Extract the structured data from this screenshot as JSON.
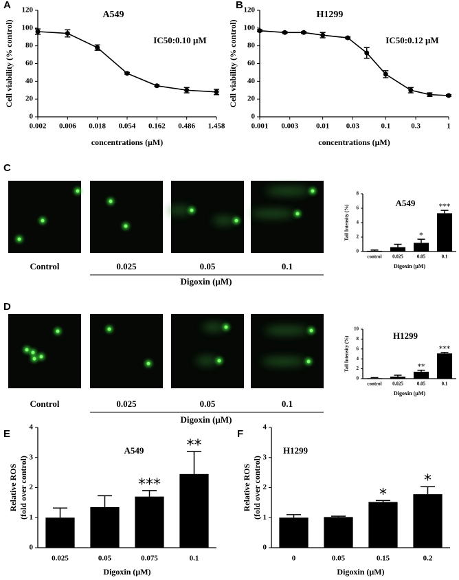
{
  "chart_data": [
    {
      "type": "line",
      "panel_label": "A",
      "title": "A549",
      "annotation": "IC50:0.10 μM",
      "xlabel": "concentrations (μM)",
      "ylabel": "Cell viability (% control)",
      "categories": [
        "0.002",
        "0.006",
        "0.018",
        "0.054",
        "0.162",
        "0.486",
        "1.458"
      ],
      "values": [
        96,
        94,
        78,
        49,
        35,
        30,
        28
      ],
      "errors": [
        3,
        4,
        3,
        1,
        1,
        3,
        3
      ],
      "color": "#000000",
      "ylim": [
        0,
        120
      ],
      "yticks": [
        0,
        20,
        40,
        60,
        80,
        100,
        120
      ]
    },
    {
      "type": "line",
      "panel_label": "B",
      "title": "H1299",
      "annotation": "IC50:0.12 μM",
      "xlabel": "concentrations (μM)",
      "ylabel": "Cell viability (% control)",
      "x": [
        0.001,
        0.0025,
        0.005,
        0.01,
        0.025,
        0.05,
        0.1,
        0.25,
        0.5,
        1
      ],
      "values": [
        97,
        95,
        95,
        92,
        89,
        72,
        48,
        30,
        25,
        24
      ],
      "errors": [
        1,
        1,
        1,
        3,
        1,
        6,
        4,
        3,
        2,
        1
      ],
      "color": "#000000",
      "xlog": true,
      "xlim": [
        0.001,
        1
      ],
      "xticks": [
        0.001,
        0.003,
        0.01,
        0.03,
        0.1,
        0.3,
        1
      ],
      "ylim": [
        0,
        120
      ],
      "yticks": [
        0,
        20,
        40,
        60,
        80,
        100,
        120
      ]
    },
    {
      "type": "bar",
      "panel_label": "C",
      "title": "A549",
      "xlabel": "Digoxin (μM)",
      "ylabel": "Tail Intensity (%)",
      "categories": [
        "control",
        "0.025",
        "0.05",
        "0.1"
      ],
      "values": [
        0.1,
        0.6,
        1.2,
        5.3
      ],
      "errors": [
        0.1,
        0.4,
        0.5,
        0.4
      ],
      "annotations": [
        null,
        null,
        "*",
        "***"
      ],
      "color": "#000000",
      "ylim": [
        0,
        8
      ],
      "yticks": [
        0,
        2,
        4,
        6,
        8
      ]
    },
    {
      "type": "bar",
      "panel_label": "D",
      "title": "H1299",
      "xlabel": "Digoxin (μM)",
      "ylabel": "Tail Intensity (%)",
      "categories": [
        "control",
        "0.025",
        "0.05",
        "0.1"
      ],
      "values": [
        0.1,
        0.4,
        1.4,
        5.1
      ],
      "errors": [
        0.1,
        0.3,
        0.3,
        0.2
      ],
      "annotations": [
        null,
        null,
        "**",
        "***"
      ],
      "color": "#000000",
      "ylim": [
        0,
        10
      ],
      "yticks": [
        0,
        2,
        4,
        6,
        8,
        10
      ]
    },
    {
      "type": "bar",
      "panel_label": "E",
      "title": "A549",
      "xlabel": "Digoxin (μM)",
      "ylabel": [
        "Relative ROS",
        "(fold over control)"
      ],
      "categories": [
        "0.025",
        "0.05",
        "0.075",
        "0.1"
      ],
      "values": [
        1.0,
        1.35,
        1.7,
        2.45
      ],
      "errors": [
        0.32,
        0.38,
        0.2,
        0.75
      ],
      "annotations": [
        null,
        null,
        "***",
        "**"
      ],
      "color": "#000000",
      "ylim": [
        0,
        4
      ],
      "yticks": [
        0,
        1,
        2,
        3,
        4
      ]
    },
    {
      "type": "bar",
      "panel_label": "F",
      "title": "H1299",
      "xlabel": "Digoxin (μM)",
      "ylabel": [
        "Relative ROS",
        "(fold over control)"
      ],
      "categories": [
        "0",
        "0.05",
        "0.15",
        "0.2"
      ],
      "values": [
        1.0,
        1.02,
        1.52,
        1.78
      ],
      "errors": [
        0.1,
        0.03,
        0.05,
        0.25
      ],
      "annotations": [
        null,
        null,
        "*",
        "*"
      ],
      "color": "#000000",
      "ylim": [
        0,
        4
      ],
      "yticks": [
        0,
        1,
        2,
        3,
        4
      ]
    }
  ],
  "image_panels": [
    {
      "labels": [
        "Control",
        "0.025",
        "0.05",
        "0.1"
      ],
      "xlabel": "Digoxin (μM)"
    },
    {
      "labels": [
        "Control",
        "0.025",
        "0.05",
        "0.1"
      ],
      "xlabel": "Digoxin (μM)"
    }
  ]
}
